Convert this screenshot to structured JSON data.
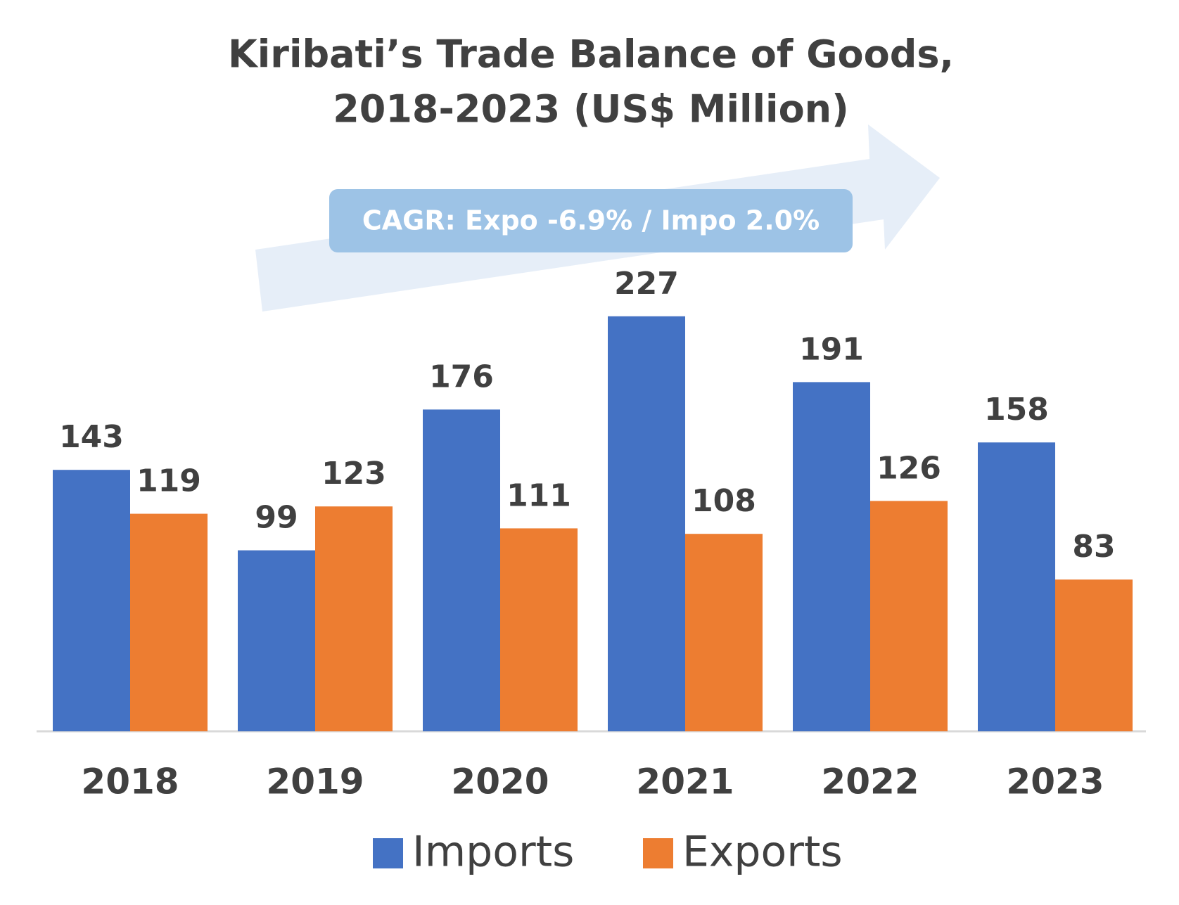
{
  "chart_data": {
    "type": "bar",
    "title": "Kiribati’s Trade Balance of Goods,",
    "subtitle": "2018-2023 (US$ Million)",
    "annotation": "CAGR: Expo -6.9% / Impo 2.0%",
    "categories": [
      "2018",
      "2019",
      "2020",
      "2021",
      "2022",
      "2023"
    ],
    "series": [
      {
        "name": "Imports",
        "color": "#4472c4",
        "values": [
          143,
          99,
          176,
          227,
          191,
          158
        ]
      },
      {
        "name": "Exports",
        "color": "#ed7d31",
        "values": [
          119,
          123,
          111,
          108,
          126,
          83
        ]
      }
    ],
    "legend": "bottom"
  }
}
